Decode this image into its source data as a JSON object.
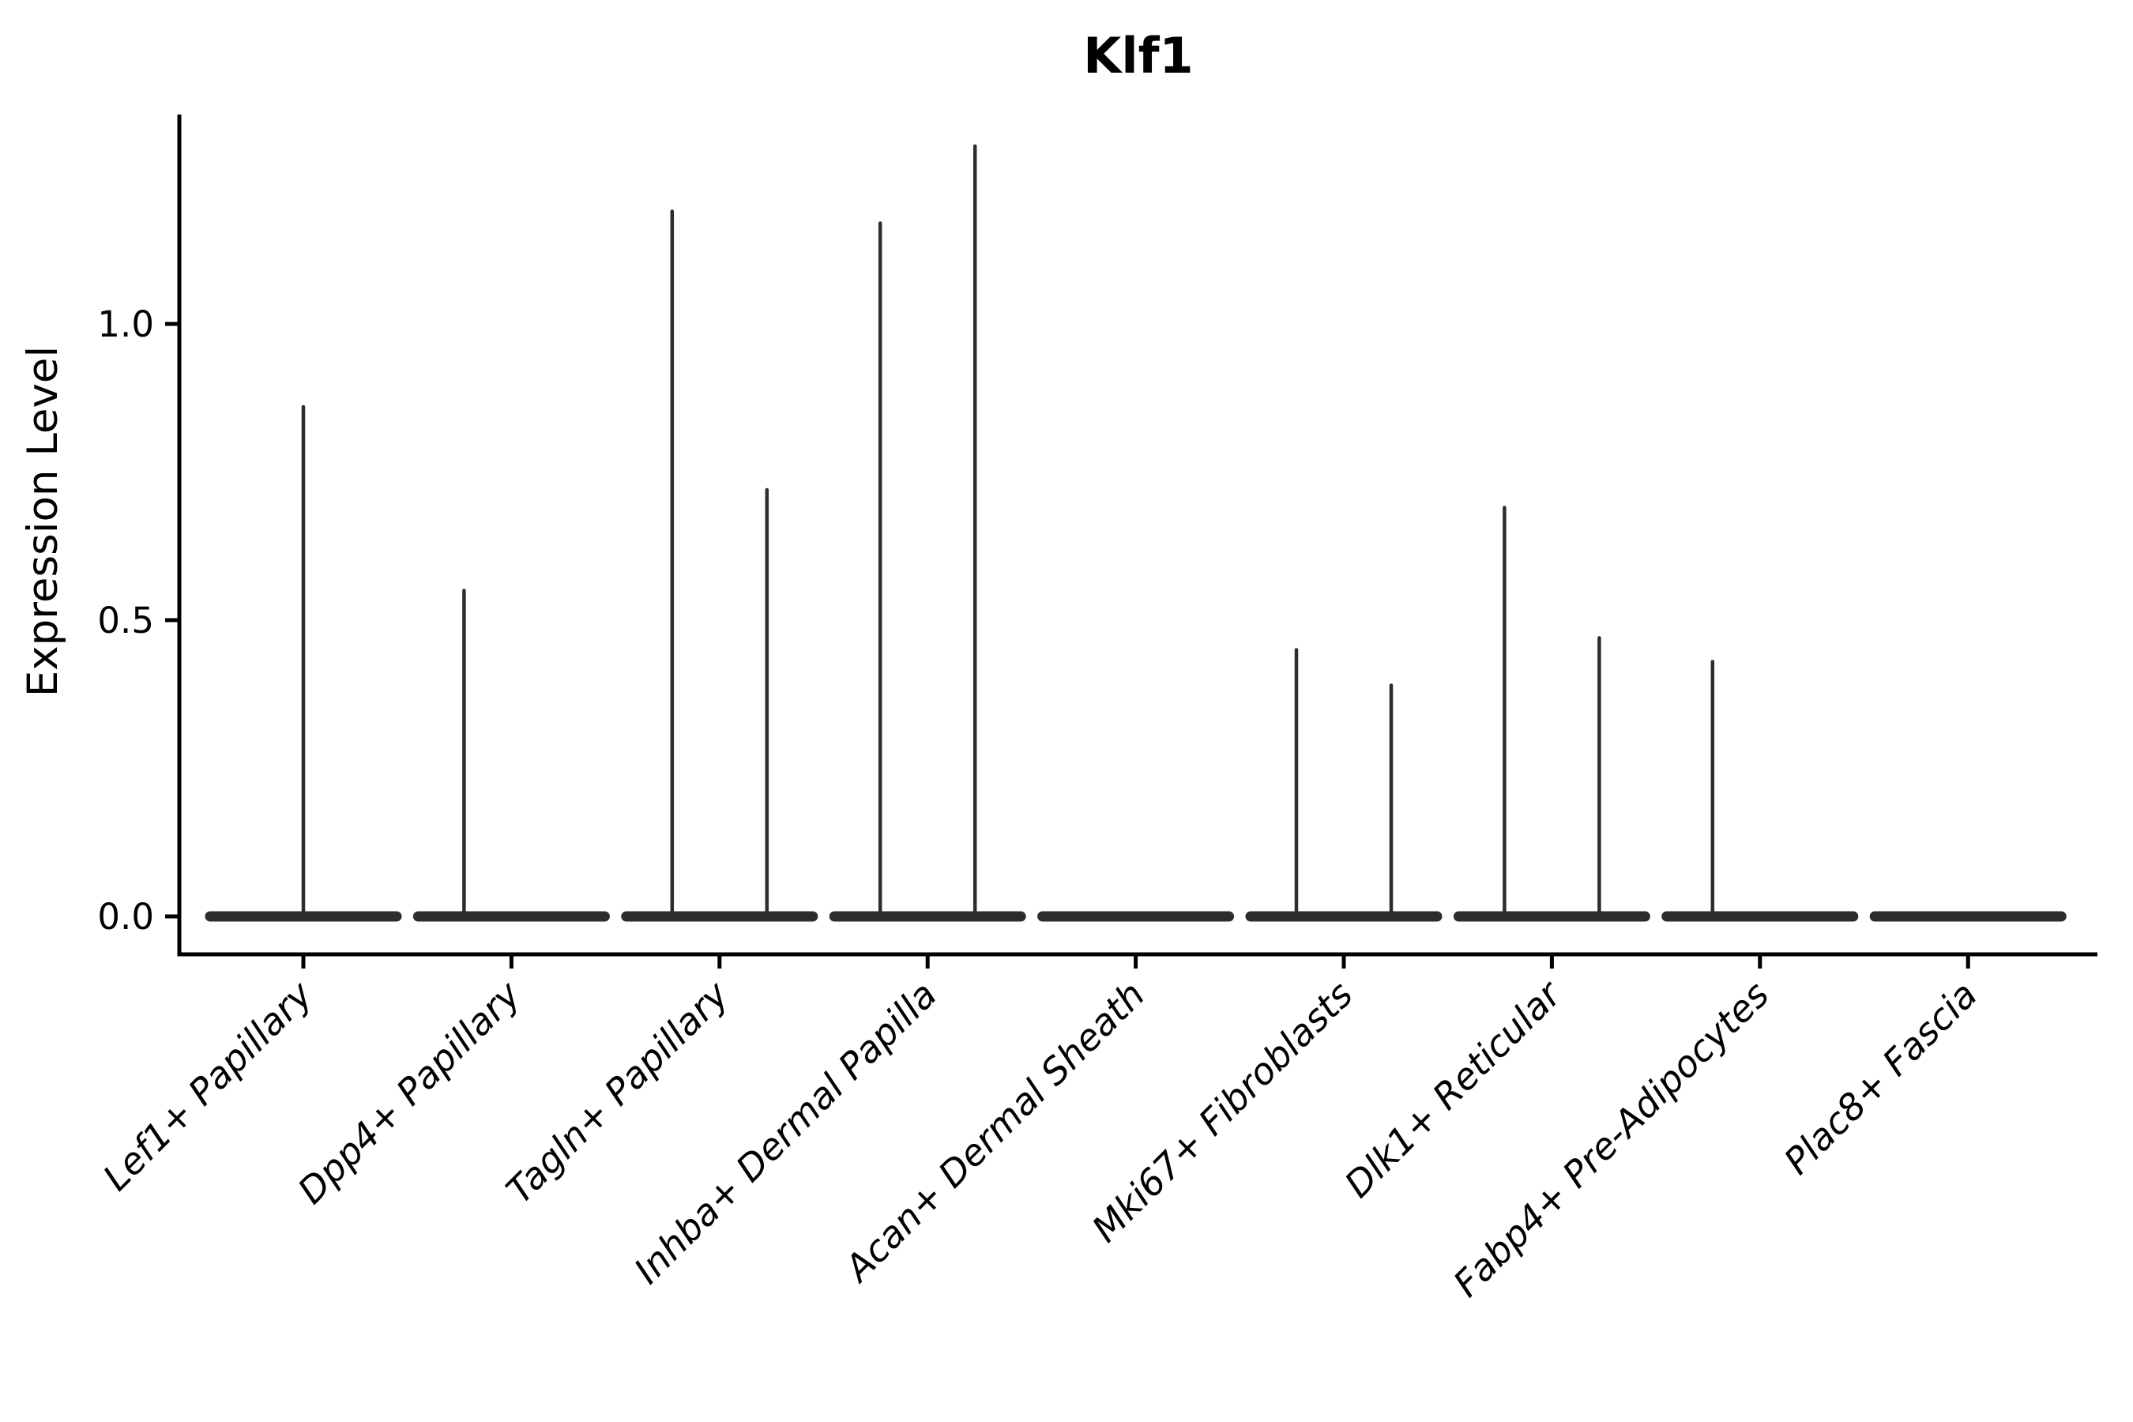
{
  "chart_data": {
    "type": "violin",
    "title": "Klf1",
    "xlabel": "",
    "ylabel": "Expression Level",
    "yticks": [
      "0.0",
      "0.5",
      "1.0"
    ],
    "ytick_values": [
      0.0,
      0.5,
      1.0
    ],
    "ylim": [
      -0.064,
      1.353
    ],
    "grid": false,
    "legend": "none",
    "categories": [
      "Lef1+ Papillary",
      "Dpp4+ Papillary",
      "Tagln+ Papillary",
      "Inhba+ Dermal Papilla",
      "Acan+ Dermal Sheath",
      "Mki67+ Fibroblasts",
      "Dlk1+ Reticular",
      "Fabp4+ Pre-Adipocytes",
      "Plac8+ Fascia"
    ],
    "violins": [
      {
        "category": "Lef1+ Papillary",
        "body_at_zero": true,
        "spikes": [
          {
            "side": "center",
            "max": 0.86
          }
        ]
      },
      {
        "category": "Dpp4+ Papillary",
        "body_at_zero": true,
        "spikes": [
          {
            "side": "left",
            "max": 0.55
          }
        ]
      },
      {
        "category": "Tagln+ Papillary",
        "body_at_zero": true,
        "spikes": [
          {
            "side": "left",
            "max": 1.19
          },
          {
            "side": "right",
            "max": 0.72
          }
        ]
      },
      {
        "category": "Inhba+ Dermal Papilla",
        "body_at_zero": true,
        "spikes": [
          {
            "side": "left",
            "max": 1.17
          },
          {
            "side": "right",
            "max": 1.3
          }
        ]
      },
      {
        "category": "Acan+ Dermal Sheath",
        "body_at_zero": true,
        "spikes": []
      },
      {
        "category": "Mki67+ Fibroblasts",
        "body_at_zero": true,
        "spikes": [
          {
            "side": "left",
            "max": 0.45
          },
          {
            "side": "right",
            "max": 0.39
          }
        ]
      },
      {
        "category": "Dlk1+ Reticular",
        "body_at_zero": true,
        "spikes": [
          {
            "side": "left",
            "max": 0.69
          },
          {
            "side": "right",
            "max": 0.47
          }
        ]
      },
      {
        "category": "Fabp4+ Pre-Adipocytes",
        "body_at_zero": true,
        "spikes": [
          {
            "side": "left",
            "max": 0.43
          }
        ]
      },
      {
        "category": "Plac8+ Fascia",
        "body_at_zero": true,
        "spikes": []
      }
    ],
    "colors": {
      "violin": "#2d2d2d",
      "axis": "#000000",
      "text": "#000000",
      "background": "#ffffff"
    }
  }
}
